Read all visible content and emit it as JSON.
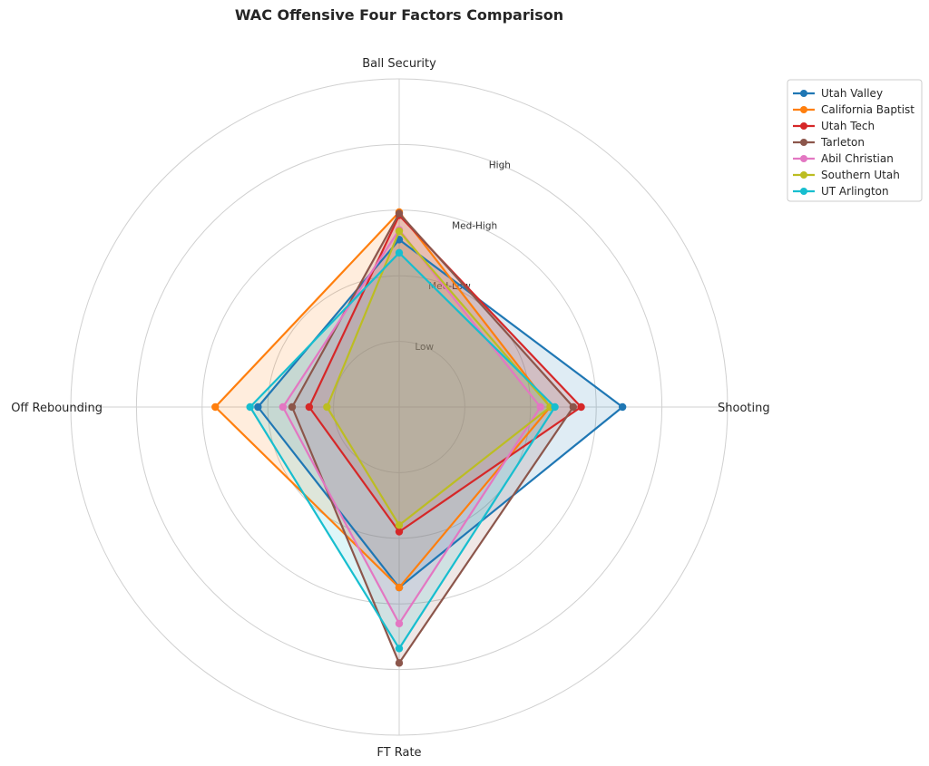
{
  "chart_data": {
    "type": "radar",
    "title": "WAC Offensive Four Factors Comparison",
    "axes": [
      "Shooting",
      "Ball Security",
      "Off Rebounding",
      "FT Rate"
    ],
    "ring_labels": [
      "Low",
      "Med-Low",
      "Med-High",
      "High"
    ],
    "rlim": [
      0,
      5
    ],
    "grid": true,
    "legend_position": "top-right",
    "series": [
      {
        "name": "Utah Valley",
        "color": "#1f77b4",
        "values": [
          3.4,
          2.55,
          2.15,
          2.75
        ]
      },
      {
        "name": "California Baptist",
        "color": "#ff7f0e",
        "values": [
          2.3,
          2.97,
          2.8,
          2.75
        ]
      },
      {
        "name": "Utah Tech",
        "color": "#d62728",
        "values": [
          2.77,
          2.92,
          1.37,
          1.9
        ]
      },
      {
        "name": "Tarleton",
        "color": "#8c564b",
        "values": [
          2.65,
          2.95,
          1.63,
          3.9
        ]
      },
      {
        "name": "Abil Christian",
        "color": "#e377c2",
        "values": [
          2.15,
          2.7,
          1.77,
          3.3
        ]
      },
      {
        "name": "Southern Utah",
        "color": "#bcbd22",
        "values": [
          2.3,
          2.68,
          1.1,
          1.8
        ]
      },
      {
        "name": "UT Arlington",
        "color": "#17becf",
        "values": [
          2.37,
          2.35,
          2.27,
          3.68
        ]
      }
    ]
  }
}
